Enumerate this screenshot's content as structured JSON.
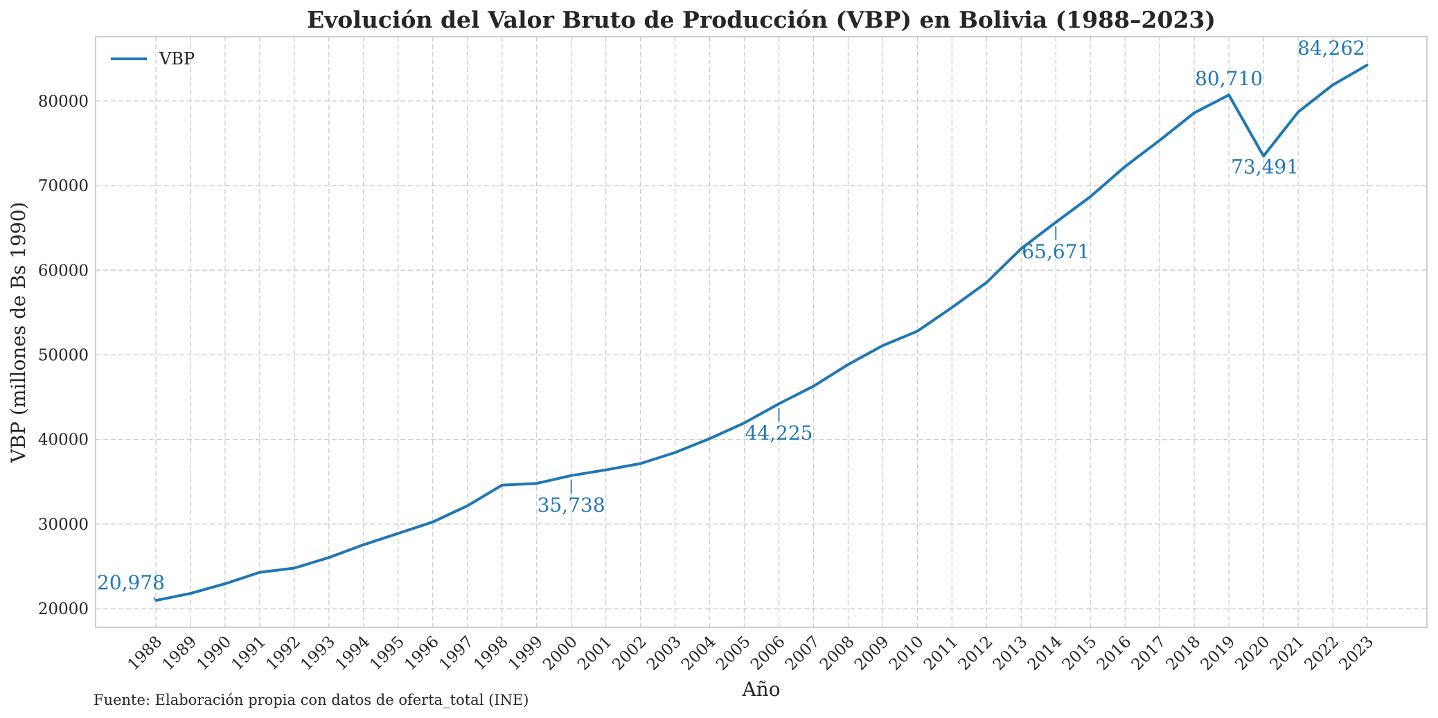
{
  "chart_data": {
    "type": "line",
    "title": "Evolución del Valor Bruto de Producción (VBP) en Bolivia (1988–2023)",
    "xlabel": "Año",
    "ylabel": "VBP (millones de Bs 1990)",
    "source_note": "Fuente: Elaboración propia con datos de oferta_total (INE)",
    "legend_position": "top-left",
    "grid": true,
    "ylim": [
      17800,
      87600
    ],
    "yticks": [
      20000,
      30000,
      40000,
      50000,
      60000,
      70000,
      80000
    ],
    "x": [
      1988,
      1989,
      1990,
      1991,
      1992,
      1993,
      1994,
      1995,
      1996,
      1997,
      1998,
      1999,
      2000,
      2001,
      2002,
      2003,
      2004,
      2005,
      2006,
      2007,
      2008,
      2009,
      2010,
      2011,
      2012,
      2013,
      2014,
      2015,
      2016,
      2017,
      2018,
      2019,
      2020,
      2021,
      2022,
      2023
    ],
    "series": [
      {
        "name": "VBP",
        "color": "#1f77b4",
        "values": [
          20978,
          21800,
          22950,
          24300,
          24800,
          26050,
          27550,
          28900,
          30250,
          32150,
          34600,
          34800,
          35738,
          36400,
          37150,
          38450,
          40100,
          41950,
          44225,
          46300,
          48850,
          51100,
          52800,
          55600,
          58550,
          62550,
          65671,
          68700,
          72250,
          75350,
          78600,
          80710,
          73491,
          78700,
          81900,
          84262
        ]
      }
    ],
    "annotations": [
      {
        "year": 1988,
        "value": 20978,
        "label": "20,978"
      },
      {
        "year": 2000,
        "value": 35738,
        "label": "35,738"
      },
      {
        "year": 2006,
        "value": 44225,
        "label": "44,225"
      },
      {
        "year": 2014,
        "value": 65671,
        "label": "65,671"
      },
      {
        "year": 2019,
        "value": 80710,
        "label": "80,710"
      },
      {
        "year": 2020,
        "value": 73491,
        "label": "73,491"
      },
      {
        "year": 2023,
        "value": 84262,
        "label": "84,262"
      }
    ]
  }
}
